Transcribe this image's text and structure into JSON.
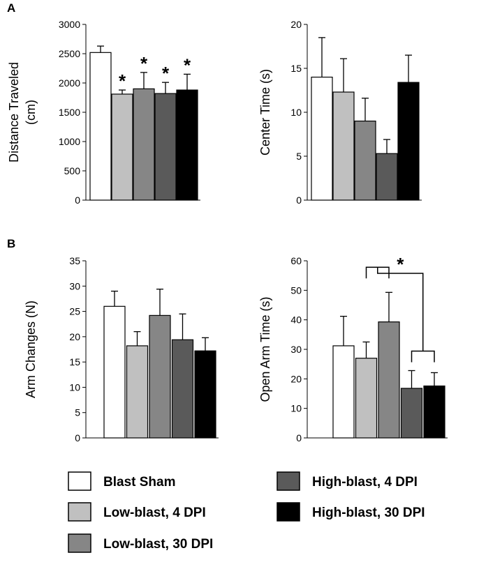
{
  "figure": {
    "legend": [
      {
        "label": "Blast Sham",
        "color": "#ffffff"
      },
      {
        "label": "Low-blast, 4 DPI",
        "color": "#c0c0c0"
      },
      {
        "label": "Low-blast, 30 DPI",
        "color": "#868686"
      },
      {
        "label": "High-blast, 4 DPI",
        "color": "#5a5a5a"
      },
      {
        "label": "High-blast, 30 DPI",
        "color": "#000000"
      }
    ]
  },
  "chart_data": [
    {
      "type": "bar",
      "panel": "A",
      "ylabel": "Distance Traveled (cm)",
      "ylabel_lines": [
        "Distance Traveled",
        "(cm)"
      ],
      "ylim": [
        0,
        3000
      ],
      "yticks": [
        0,
        500,
        1000,
        1500,
        2000,
        2500,
        3000
      ],
      "categories": [
        "Blast Sham",
        "Low-blast, 4 DPI",
        "Low-blast, 30 DPI",
        "High-blast, 4 DPI",
        "High-blast, 30 DPI"
      ],
      "values": [
        2520,
        1810,
        1900,
        1820,
        1880
      ],
      "errors": [
        110,
        70,
        280,
        190,
        270
      ],
      "significance": [
        "",
        "*",
        "*",
        "*",
        "*"
      ]
    },
    {
      "type": "bar",
      "panel": "",
      "ylabel": "Center Time (s)",
      "ylabel_lines": [
        "Center Time (s)"
      ],
      "ylim": [
        0,
        20
      ],
      "yticks": [
        0,
        5,
        10,
        15,
        20
      ],
      "categories": [
        "Blast Sham",
        "Low-blast, 4 DPI",
        "Low-blast, 30 DPI",
        "High-blast, 4 DPI",
        "High-blast, 30 DPI"
      ],
      "values": [
        14.0,
        12.3,
        9.0,
        5.3,
        13.4
      ],
      "errors": [
        4.5,
        3.8,
        2.6,
        1.6,
        3.1
      ],
      "significance": [
        "",
        "",
        "",
        "",
        ""
      ]
    },
    {
      "type": "bar",
      "panel": "B",
      "ylabel": "Arm Changes (N)",
      "ylabel_lines": [
        "Arm Changes (N)"
      ],
      "ylim": [
        0,
        35
      ],
      "yticks": [
        0,
        5,
        10,
        15,
        20,
        25,
        30,
        35
      ],
      "categories": [
        "Blast Sham",
        "Low-blast, 4 DPI",
        "Low-blast, 30 DPI",
        "High-blast, 4 DPI",
        "High-blast, 30 DPI"
      ],
      "values": [
        26.0,
        18.2,
        24.2,
        19.4,
        17.2
      ],
      "errors": [
        3.0,
        2.8,
        5.2,
        5.1,
        2.6
      ],
      "significance": [
        "",
        "",
        "",
        "",
        ""
      ]
    },
    {
      "type": "bar",
      "panel": "",
      "ylabel": "Open Arm Time (s)",
      "ylabel_lines": [
        "Open Arm Time (s)"
      ],
      "ylim": [
        0,
        60
      ],
      "yticks": [
        0,
        10,
        20,
        30,
        40,
        50,
        60
      ],
      "categories": [
        "Blast Sham",
        "Low-blast, 4 DPI",
        "Low-blast, 30 DPI",
        "High-blast, 4 DPI",
        "High-blast, 30 DPI"
      ],
      "values": [
        31.2,
        27.0,
        39.3,
        16.8,
        17.6
      ],
      "errors": [
        10.0,
        5.5,
        10.0,
        6.0,
        4.5
      ],
      "significance": [
        "",
        "",
        "",
        "",
        ""
      ],
      "comparison": {
        "groups_a": [
          1,
          2
        ],
        "groups_b": [
          3,
          4
        ],
        "label": "*"
      }
    }
  ]
}
